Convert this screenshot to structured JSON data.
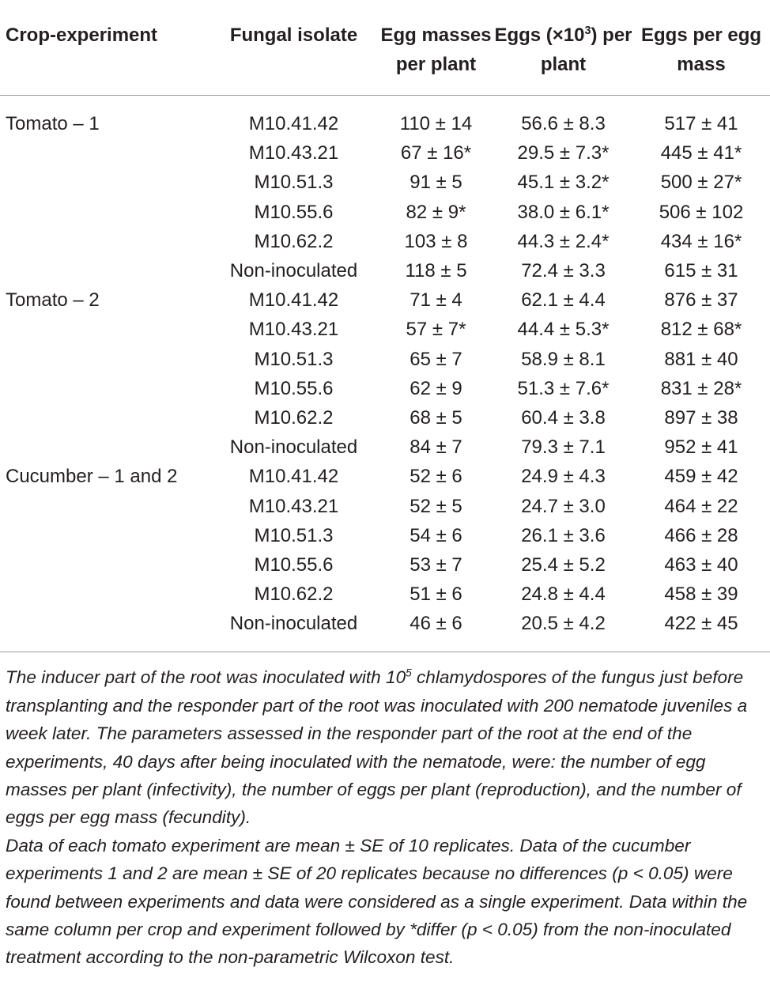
{
  "table": {
    "headers": [
      "Crop-experiment",
      "Fungal isolate",
      "Egg masses per plant",
      {
        "pre": "Eggs (×10",
        "sup": "3",
        "post": ") per plant"
      },
      "Eggs per egg mass"
    ],
    "groups": [
      {
        "crop": "Tomato – 1",
        "rows": [
          [
            "M10.41.42",
            "110 ± 14",
            "56.6 ± 8.3",
            "517 ± 41"
          ],
          [
            "M10.43.21",
            "67 ± 16*",
            "29.5 ± 7.3*",
            "445 ± 41*"
          ],
          [
            "M10.51.3",
            "91 ± 5",
            "45.1 ± 3.2*",
            "500 ± 27*"
          ],
          [
            "M10.55.6",
            "82 ± 9*",
            "38.0 ± 6.1*",
            "506 ± 102"
          ],
          [
            "M10.62.2",
            "103 ± 8",
            "44.3 ± 2.4*",
            "434 ± 16*"
          ],
          [
            "Non-inoculated",
            "118 ± 5",
            "72.4 ± 3.3",
            "615 ± 31"
          ]
        ]
      },
      {
        "crop": "Tomato – 2",
        "rows": [
          [
            "M10.41.42",
            "71 ± 4",
            "62.1 ± 4.4",
            "876 ± 37"
          ],
          [
            "M10.43.21",
            "57 ± 7*",
            "44.4 ± 5.3*",
            "812 ± 68*"
          ],
          [
            "M10.51.3",
            "65 ± 7",
            "58.9 ± 8.1",
            "881 ± 40"
          ],
          [
            "M10.55.6",
            "62 ± 9",
            "51.3 ± 7.6*",
            "831 ± 28*"
          ],
          [
            "M10.62.2",
            "68 ± 5",
            "60.4 ± 3.8",
            "897 ± 38"
          ],
          [
            "Non-inoculated",
            "84 ± 7",
            "79.3 ± 7.1",
            "952 ± 41"
          ]
        ]
      },
      {
        "crop": "Cucumber – 1 and 2",
        "rows": [
          [
            "M10.41.42",
            "52 ± 6",
            "24.9 ± 4.3",
            "459 ± 42"
          ],
          [
            "M10.43.21",
            "52 ± 5",
            "24.7 ± 3.0",
            "464 ± 22"
          ],
          [
            "M10.51.3",
            "54 ± 6",
            "26.1 ± 3.6",
            "466 ± 28"
          ],
          [
            "M10.55.6",
            "53 ± 7",
            "25.4 ± 5.2",
            "463 ± 40"
          ],
          [
            "M10.62.2",
            "51 ± 6",
            "24.8 ± 4.4",
            "458 ± 39"
          ],
          [
            "Non-inoculated",
            "46 ± 6",
            "20.5 ± 4.2",
            "422 ± 45"
          ]
        ]
      }
    ]
  },
  "notes": [
    {
      "pre": "The inducer part of the root was inoculated with 10",
      "sup": "5",
      "post": " chlamydospores of the fungus just before transplanting and the responder part of the root was inoculated with 200 nematode juveniles a week later. The parameters assessed in the responder part of the root at the end of the experiments, 40 days after being inoculated with the nematode, were: the number of egg masses per plant (infectivity), the number of eggs per plant (reproduction), and the number of eggs per egg mass (fecundity)."
    },
    "Data of each tomato experiment are mean ± SE of 10 replicates. Data of the cucumber experiments 1 and 2 are mean ± SE of 20 replicates because no differences (p < 0.05) were found between experiments and data were considered as a single experiment. Data within the same column per crop and experiment followed by *differ (p < 0.05) from the non-inoculated treatment according to the non-parametric Wilcoxon test."
  ]
}
